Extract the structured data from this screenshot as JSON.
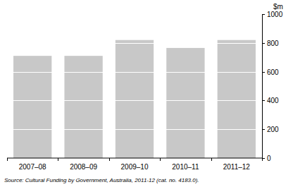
{
  "chart_data": {
    "type": "bar",
    "y_label": "$m",
    "source": "Source: Cultural Funding by Government, Australia, 2011-12 (cat. no. 4183.0).",
    "categories": [
      "2007–08",
      "2008–09",
      "2009–10",
      "2010–11",
      "2011–12"
    ],
    "values": [
      710,
      710,
      820,
      765,
      820
    ],
    "color": "#c8c8c8",
    "ylim": [
      0,
      1000
    ],
    "yticks": [
      0,
      200,
      400,
      600,
      800,
      1000
    ],
    "grid": true
  }
}
